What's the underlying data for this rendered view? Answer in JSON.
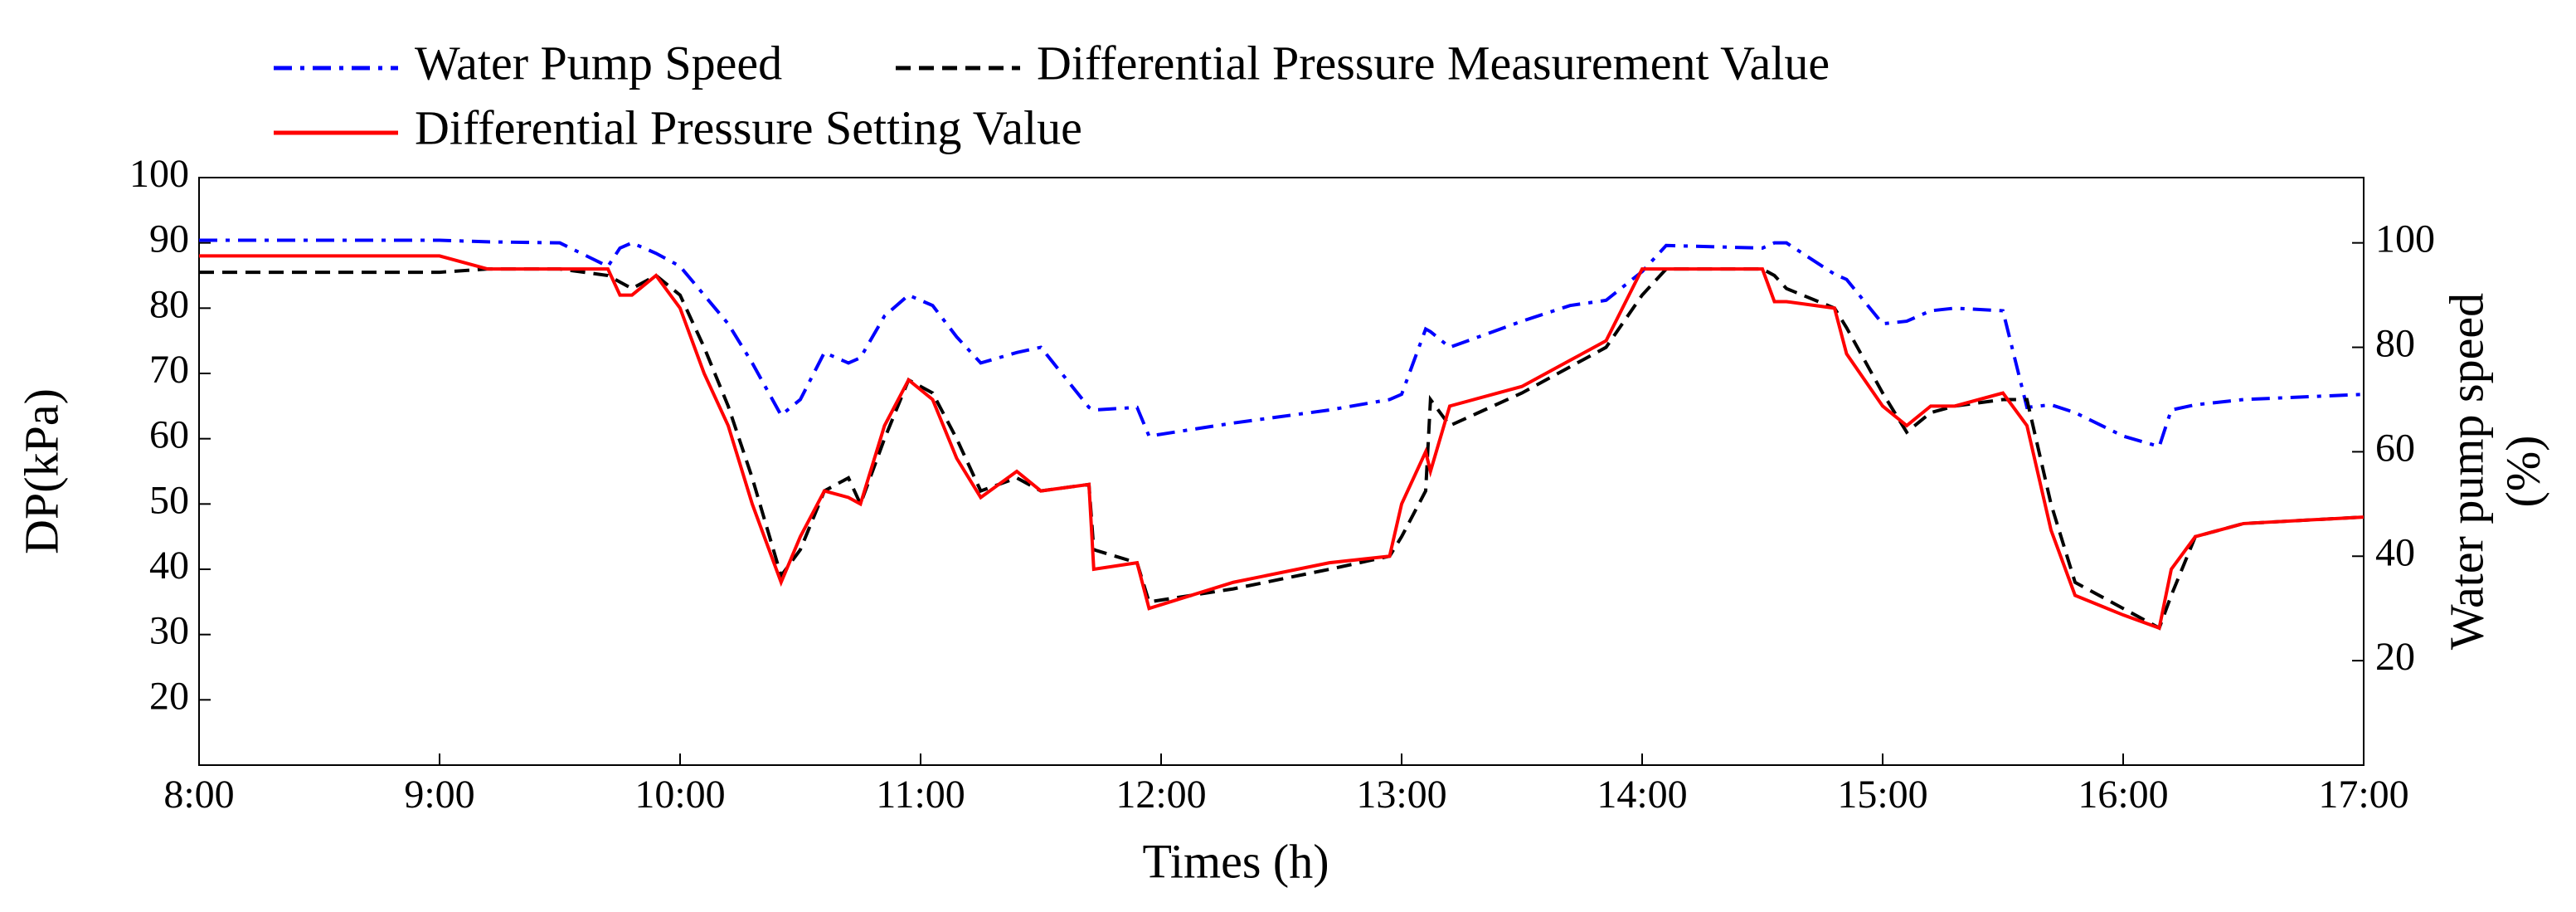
{
  "chart_data": {
    "type": "line",
    "ylabel": "DP(kPa)",
    "y2label": [
      "Water pump speed",
      "(%)"
    ],
    "xlabel": "Times (h)",
    "x": [
      8,
      8.5,
      9,
      9.2,
      9.5,
      9.7,
      9.75,
      9.8,
      9.9,
      10,
      10.1,
      10.2,
      10.3,
      10.42,
      10.5,
      10.6,
      10.7,
      10.75,
      10.85,
      10.95,
      11.05,
      11.15,
      11.25,
      11.4,
      11.5,
      11.7,
      11.72,
      11.9,
      11.95,
      12.3,
      12.7,
      12.95,
      13,
      13.1,
      13.12,
      13.2,
      13.5,
      13.7,
      13.85,
      14,
      14.1,
      14.5,
      14.55,
      14.6,
      14.8,
      14.85,
      15,
      15.1,
      15.2,
      15.3,
      15.5,
      15.6,
      15.7,
      15.8,
      16,
      16.15,
      16.2,
      16.3,
      16.5,
      17
    ],
    "series": [
      {
        "name": "Water Pump Speed",
        "color": "#0000ff",
        "dash": "dashdot",
        "axis": "y2",
        "values": [
          100.5,
          100.5,
          100.5,
          100.2,
          100,
          95.5,
          99,
          100,
          98,
          95.5,
          90,
          84.5,
          77,
          67,
          70,
          79,
          77,
          78,
          86,
          90,
          88,
          82,
          77,
          79,
          80,
          68.5,
          68,
          68.5,
          63,
          65.5,
          68,
          70,
          71,
          83.5,
          83,
          80,
          85,
          88,
          89,
          94.5,
          99.5,
          99,
          100,
          100,
          94,
          93,
          84.5,
          85,
          87,
          87.5,
          87,
          68.5,
          69,
          67.5,
          63,
          61,
          68,
          69,
          70,
          71
        ]
      },
      {
        "name": "Differential Pressure Measurement Value",
        "color": "#000000",
        "dash": "dashed",
        "values": [
          85.5,
          85.5,
          85.5,
          86,
          86,
          85,
          84,
          83,
          85,
          82,
          74,
          65,
          54,
          39,
          43,
          52,
          54,
          50,
          60,
          69,
          67,
          60,
          52,
          54,
          52,
          53,
          43,
          41,
          35,
          37,
          40,
          42,
          45,
          52,
          66,
          62,
          67,
          71,
          74,
          82,
          86,
          86,
          85,
          83,
          80,
          77,
          67,
          61,
          64,
          65,
          66,
          66,
          50,
          38,
          34,
          31,
          36,
          45,
          47,
          48
        ]
      },
      {
        "name": "Differential Pressure Setting Value",
        "color": "#ff0000",
        "dash": "solid",
        "values": [
          88,
          88,
          88,
          86,
          86,
          86,
          82,
          82,
          85,
          80,
          70,
          62,
          50,
          38,
          45,
          52,
          51,
          50,
          62,
          69,
          66,
          57,
          51,
          55,
          52,
          53,
          40,
          41,
          34,
          38,
          41,
          42,
          50,
          58,
          55,
          65,
          68,
          72,
          75,
          86,
          86,
          86,
          81,
          81,
          80,
          73,
          65,
          62,
          65,
          65,
          67,
          62,
          46,
          36,
          33,
          31,
          40,
          45,
          47,
          48
        ]
      }
    ],
    "xlim": [
      8,
      17
    ],
    "xticks": [
      {
        "value": 8,
        "label": "8:00"
      },
      {
        "value": 9,
        "label": "9:00"
      },
      {
        "value": 10,
        "label": "10:00"
      },
      {
        "value": 11,
        "label": "11:00"
      },
      {
        "value": 12,
        "label": "12:00"
      },
      {
        "value": 13,
        "label": "13:00"
      },
      {
        "value": 14,
        "label": "14:00"
      },
      {
        "value": 15,
        "label": "15:00"
      },
      {
        "value": 16,
        "label": "16:00"
      },
      {
        "value": 17,
        "label": "17:00"
      }
    ],
    "ylim": [
      10,
      100
    ],
    "yticks": [
      20,
      30,
      40,
      50,
      60,
      70,
      80,
      90,
      100
    ],
    "y2lim": [
      0,
      112.5
    ],
    "y2ticks": [
      20,
      40,
      60,
      80,
      100
    ],
    "grid": false,
    "legend": "top"
  }
}
